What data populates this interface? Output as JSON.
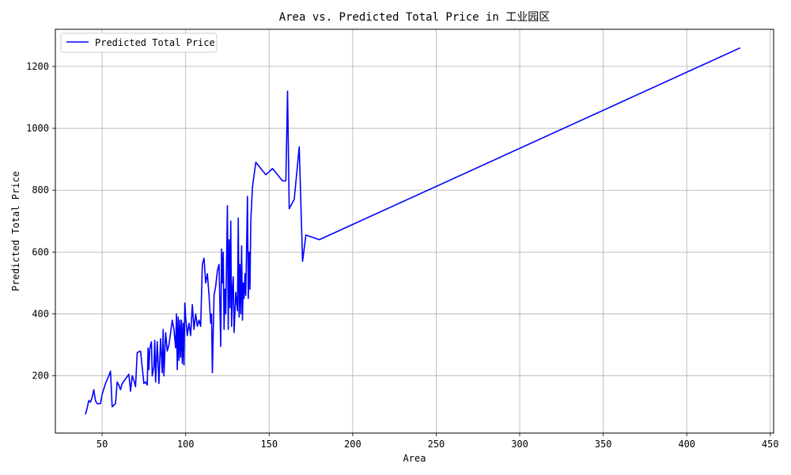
{
  "chart_data": {
    "type": "line",
    "title": "Area vs. Predicted Total Price in 工业园区",
    "xlabel": "Area",
    "ylabel": "Predicted Total Price",
    "xlim": [
      22,
      452
    ],
    "ylim": [
      15,
      1320
    ],
    "xticks": [
      50,
      100,
      150,
      200,
      250,
      300,
      350,
      400,
      450
    ],
    "yticks": [
      200,
      400,
      600,
      800,
      1000,
      1200
    ],
    "grid": true,
    "legend": {
      "position": "top-left"
    },
    "series": [
      {
        "name": "Predicted Total Price",
        "color": "#0000ff",
        "points": [
          [
            40,
            75
          ],
          [
            41,
            95
          ],
          [
            42,
            120
          ],
          [
            43,
            115
          ],
          [
            44,
            130
          ],
          [
            45,
            155
          ],
          [
            46,
            120
          ],
          [
            47,
            110
          ],
          [
            48,
            110
          ],
          [
            49,
            110
          ],
          [
            50,
            140
          ],
          [
            52,
            175
          ],
          [
            54,
            200
          ],
          [
            55,
            215
          ],
          [
            56,
            100
          ],
          [
            57,
            105
          ],
          [
            58,
            110
          ],
          [
            59,
            180
          ],
          [
            60,
            170
          ],
          [
            61,
            155
          ],
          [
            62,
            175
          ],
          [
            64,
            190
          ],
          [
            66,
            205
          ],
          [
            67,
            150
          ],
          [
            68,
            200
          ],
          [
            69,
            185
          ],
          [
            70,
            165
          ],
          [
            71,
            275
          ],
          [
            73,
            280
          ],
          [
            75,
            175
          ],
          [
            76,
            180
          ],
          [
            77,
            170
          ],
          [
            77.5,
            290
          ],
          [
            78,
            220
          ],
          [
            78.5,
            285
          ],
          [
            79,
            300
          ],
          [
            79.5,
            310
          ],
          [
            80,
            200
          ],
          [
            81,
            230
          ],
          [
            81.5,
            315
          ],
          [
            82,
            180
          ],
          [
            83,
            310
          ],
          [
            84,
            175
          ],
          [
            85,
            320
          ],
          [
            86,
            210
          ],
          [
            86.5,
            350
          ],
          [
            87,
            200
          ],
          [
            88,
            340
          ],
          [
            89,
            280
          ],
          [
            90,
            300
          ],
          [
            91,
            340
          ],
          [
            92,
            380
          ],
          [
            93,
            350
          ],
          [
            94,
            290
          ],
          [
            94.5,
            400
          ],
          [
            95,
            220
          ],
          [
            95.5,
            390
          ],
          [
            96,
            250
          ],
          [
            96.5,
            380
          ],
          [
            97,
            260
          ],
          [
            97.5,
            380
          ],
          [
            98,
            240
          ],
          [
            98.5,
            370
          ],
          [
            99,
            235
          ],
          [
            99.5,
            435
          ],
          [
            100,
            390
          ],
          [
            101,
            330
          ],
          [
            102,
            370
          ],
          [
            103,
            330
          ],
          [
            104,
            430
          ],
          [
            105,
            350
          ],
          [
            106,
            400
          ],
          [
            107,
            360
          ],
          [
            108,
            380
          ],
          [
            109,
            360
          ],
          [
            110,
            560
          ],
          [
            111,
            580
          ],
          [
            112,
            500
          ],
          [
            113,
            530
          ],
          [
            114,
            460
          ],
          [
            115,
            370
          ],
          [
            115.5,
            400
          ],
          [
            116,
            210
          ],
          [
            117,
            460
          ],
          [
            118,
            490
          ],
          [
            119,
            540
          ],
          [
            120,
            560
          ],
          [
            121,
            295
          ],
          [
            121.5,
            610
          ],
          [
            122,
            500
          ],
          [
            122.5,
            600
          ],
          [
            123,
            350
          ],
          [
            123.5,
            480
          ],
          [
            124,
            400
          ],
          [
            125,
            750
          ],
          [
            125.5,
            350
          ],
          [
            126,
            640
          ],
          [
            126.5,
            420
          ],
          [
            127,
            700
          ],
          [
            127.5,
            360
          ],
          [
            128,
            480
          ],
          [
            128.5,
            520
          ],
          [
            129,
            340
          ],
          [
            130,
            470
          ],
          [
            131,
            410
          ],
          [
            131.5,
            710
          ],
          [
            132,
            390
          ],
          [
            132.5,
            560
          ],
          [
            133,
            400
          ],
          [
            133.5,
            620
          ],
          [
            134,
            380
          ],
          [
            134.5,
            500
          ],
          [
            135,
            450
          ],
          [
            135.5,
            530
          ],
          [
            136,
            460
          ],
          [
            137,
            780
          ],
          [
            137.5,
            450
          ],
          [
            138,
            600
          ],
          [
            138.5,
            480
          ],
          [
            139,
            700
          ],
          [
            140,
            810
          ],
          [
            142,
            890
          ],
          [
            145,
            870
          ],
          [
            148,
            850
          ],
          [
            152,
            870
          ],
          [
            158,
            830
          ],
          [
            160,
            830
          ],
          [
            161,
            1120
          ],
          [
            162,
            740
          ],
          [
            165,
            770
          ],
          [
            168,
            940
          ],
          [
            170,
            570
          ],
          [
            172,
            655
          ],
          [
            180,
            640
          ],
          [
            432,
            1260
          ]
        ]
      }
    ]
  }
}
